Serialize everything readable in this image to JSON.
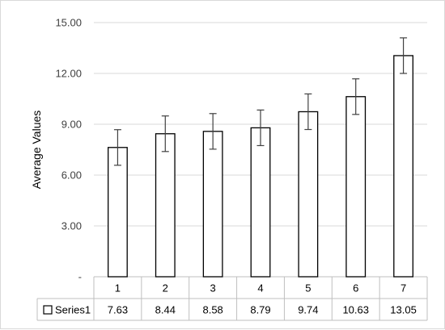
{
  "chart_data": {
    "type": "bar",
    "ylabel": "Average Values",
    "xlabel": "",
    "title": "",
    "ylim": [
      0,
      15
    ],
    "yticks": [
      "-",
      "3.00",
      "6.00",
      "9.00",
      "12.00",
      "15.00"
    ],
    "grid": true,
    "categories": [
      "1",
      "2",
      "3",
      "4",
      "5",
      "6",
      "7"
    ],
    "series": [
      {
        "name": "Series1",
        "values": [
          7.63,
          8.44,
          8.58,
          8.79,
          9.74,
          10.63,
          13.05
        ],
        "value_labels": [
          "7.63",
          "8.44",
          "8.58",
          "8.79",
          "9.74",
          "10.63",
          "13.05"
        ],
        "error": [
          1.05,
          1.05,
          1.05,
          1.05,
          1.05,
          1.05,
          1.05
        ]
      }
    ],
    "data_table": true
  }
}
